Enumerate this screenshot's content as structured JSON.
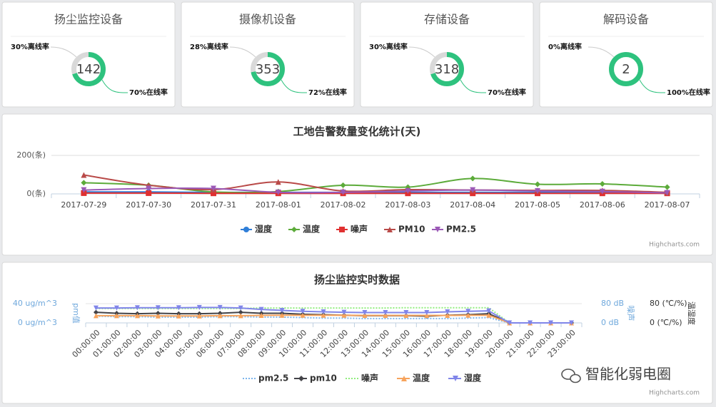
{
  "chart_data": [
    {
      "type": "pie",
      "title": "扬尘监控设备",
      "total": 142,
      "values": [
        30,
        70
      ],
      "value_labels": [
        "30%离线率",
        "70%在线率"
      ],
      "colors": [
        "#d9d9d9",
        "#2ec27e"
      ]
    },
    {
      "type": "pie",
      "title": "摄像机设备",
      "total": 353,
      "values": [
        28,
        72
      ],
      "value_labels": [
        "28%离线率",
        "72%在线率"
      ],
      "colors": [
        "#d9d9d9",
        "#2ec27e"
      ]
    },
    {
      "type": "pie",
      "title": "存储设备",
      "total": 318,
      "values": [
        30,
        70
      ],
      "value_labels": [
        "30%离线率",
        "70%在线率"
      ],
      "colors": [
        "#d9d9d9",
        "#2ec27e"
      ]
    },
    {
      "type": "pie",
      "title": "解码设备",
      "total": 2,
      "values": [
        0,
        100
      ],
      "value_labels": [
        "0%离线率",
        "100%在线率"
      ],
      "colors": [
        "#d9d9d9",
        "#2ec27e"
      ]
    },
    {
      "type": "spline",
      "title": "工地告警数量变化统计(天)",
      "categories": [
        "2017-07-29",
        "2017-07-30",
        "2017-07-31",
        "2017-08-01",
        "2017-08-02",
        "2017-08-03",
        "2017-08-04",
        "2017-08-05",
        "2017-08-06",
        "2017-08-07"
      ],
      "ylim": [
        0,
        200
      ],
      "yticks": [
        {
          "value": 0,
          "label": "0(条)"
        },
        {
          "value": 200,
          "label": "200(条)"
        }
      ],
      "grid": true,
      "series": [
        {
          "name": "湿度",
          "color": "#2f7ed8",
          "marker": "circle",
          "values": [
            10,
            10,
            8,
            8,
            8,
            8,
            8,
            8,
            8,
            6
          ]
        },
        {
          "name": "温度",
          "color": "#5cab3a",
          "marker": "diamond",
          "values": [
            58,
            45,
            10,
            12,
            45,
            35,
            80,
            50,
            52,
            35
          ]
        },
        {
          "name": "噪声",
          "color": "#e03030",
          "marker": "square",
          "values": [
            4,
            4,
            3,
            3,
            3,
            3,
            3,
            3,
            3,
            3
          ]
        },
        {
          "name": "PM10",
          "color": "#b94a48",
          "marker": "triangle",
          "values": [
            98,
            45,
            22,
            62,
            15,
            22,
            20,
            18,
            18,
            8
          ]
        },
        {
          "name": "PM2.5",
          "color": "#9b59b6",
          "marker": "triangle-down",
          "values": [
            20,
            28,
            28,
            8,
            8,
            15,
            20,
            15,
            12,
            5
          ]
        }
      ],
      "credits": "Highcharts.com"
    },
    {
      "type": "line",
      "title": "扬尘监控实时数据",
      "categories": [
        "00:00:00",
        "01:00:00",
        "02:00:00",
        "03:00:00",
        "04:00:00",
        "05:00:00",
        "06:00:00",
        "07:00:00",
        "08:00:00",
        "09:00:00",
        "10:00:00",
        "11:00:00",
        "12:00:00",
        "13:00:00",
        "14:00:00",
        "15:00:00",
        "16:00:00",
        "17:00:00",
        "18:00:00",
        "19:00:00",
        "20:00:00",
        "21:00:00",
        "22:00:00",
        "23:00:00"
      ],
      "ylabel": "pm值",
      "ylim": [
        0,
        40
      ],
      "yticks": [
        {
          "value": 0,
          "label": "0 ug/m^3"
        },
        {
          "value": 40,
          "label": "40 ug/m^3"
        }
      ],
      "y2label": "噪声",
      "y2lim": [
        0,
        80
      ],
      "y2ticks": [
        {
          "value": 0,
          "label": "0 dB"
        },
        {
          "value": 80,
          "label": "80 dB"
        }
      ],
      "y3label": "温湿度",
      "y3lim": [
        0,
        80
      ],
      "y3ticks": [
        {
          "value": 0,
          "label": "0 (℃/%)"
        },
        {
          "value": 80,
          "label": "80 (℃/%)"
        }
      ],
      "series": [
        {
          "name": "pm2.5",
          "color": "#7cb5ec",
          "dash": "dot",
          "axis": "y",
          "values": [
            14,
            13,
            13,
            12,
            12,
            12,
            13,
            13,
            12,
            12,
            11,
            10,
            10,
            9,
            9,
            9,
            9,
            9,
            10,
            11,
            0,
            0,
            0,
            0
          ]
        },
        {
          "name": "pm10",
          "color": "#434348",
          "marker": "diamond",
          "axis": "y",
          "values": [
            22,
            20,
            19,
            20,
            19,
            19,
            20,
            22,
            20,
            20,
            18,
            17,
            16,
            15,
            15,
            15,
            14,
            16,
            17,
            19,
            0,
            0,
            0,
            0
          ]
        },
        {
          "name": "噪声",
          "color": "#90ed7d",
          "dash": "dot",
          "axis": "y2",
          "values": [
            60,
            60,
            60,
            60,
            60,
            60,
            60,
            60,
            62,
            62,
            62,
            62,
            62,
            62,
            62,
            63,
            63,
            63,
            63,
            63,
            0,
            0,
            0,
            0
          ]
        },
        {
          "name": "温度",
          "color": "#f7a35c",
          "marker": "triangle",
          "axis": "y3",
          "values": [
            30,
            30,
            30,
            29,
            29,
            29,
            30,
            30,
            31,
            32,
            32,
            32,
            32,
            31,
            31,
            31,
            31,
            31,
            32,
            32,
            0,
            0,
            0,
            0
          ]
        },
        {
          "name": "湿度",
          "color": "#8085e9",
          "marker": "triangle-down",
          "axis": "y3",
          "values": [
            62,
            62,
            63,
            63,
            63,
            64,
            64,
            62,
            56,
            52,
            48,
            46,
            44,
            43,
            43,
            43,
            43,
            46,
            48,
            50,
            0,
            0,
            0,
            0
          ]
        }
      ],
      "credits": "Highcharts.com"
    }
  ],
  "watermark": "智能化弱电圈"
}
